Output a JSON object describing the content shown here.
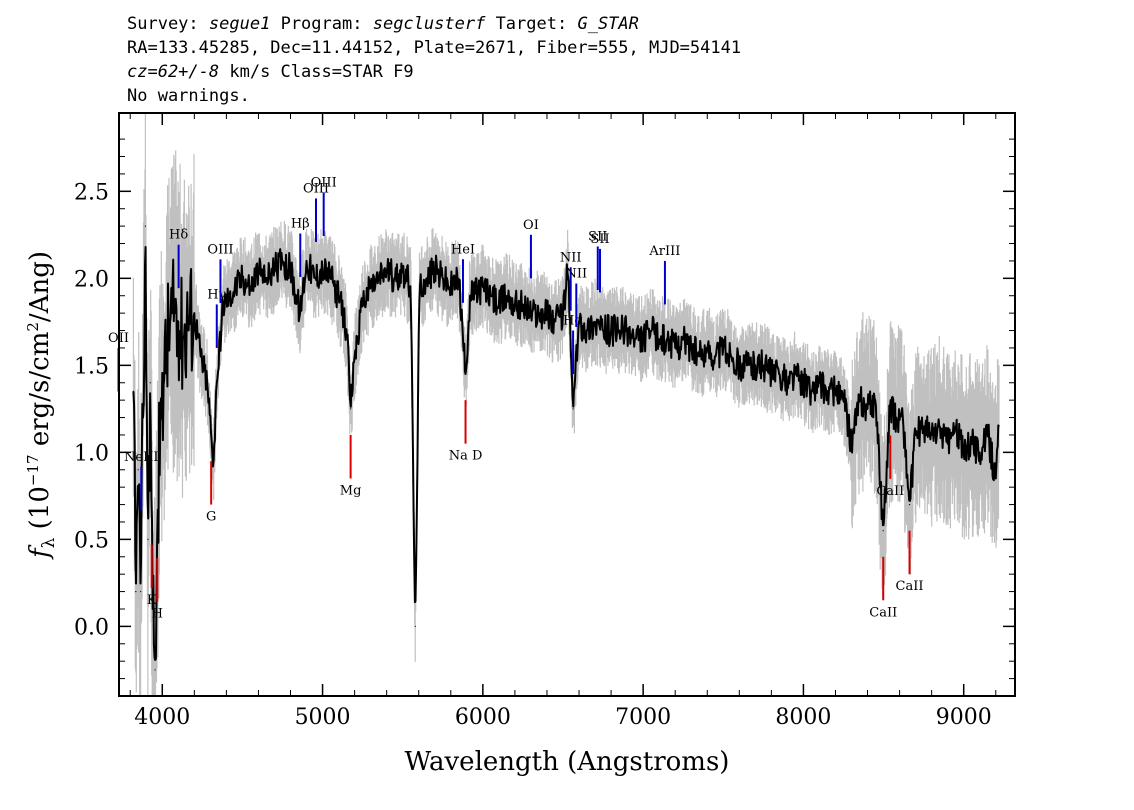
{
  "header": {
    "survey_label": "Survey:",
    "survey": "segue1",
    "program_label": "Program:",
    "program": "segclusterf",
    "target_label": "Target:",
    "target": "G_STAR",
    "line2": "RA=133.45285, Dec=11.44152, Plate=2671, Fiber=555, MJD=54141",
    "cz": "cz=62+/-8",
    "cz_rest": "km/s Class=STAR F9",
    "line4": "No warnings."
  },
  "chart_data": {
    "type": "line",
    "xlabel": "Wavelength (Angstroms)",
    "ylabel": "f_λ (10^-17 erg/s/cm^2/Ang)",
    "ylabel_parts": {
      "f": "f",
      "sub": "λ",
      "a": " (10",
      "sup1": "−17",
      "b": " erg/s/cm",
      "sup2": "2",
      "c": "/Ang)"
    },
    "xlim": [
      3730,
      9320
    ],
    "ylim": [
      -0.4,
      2.95
    ],
    "xticks": [
      4000,
      5000,
      6000,
      7000,
      8000,
      9000
    ],
    "xtick_labels": [
      "4000",
      "5000",
      "6000",
      "7000",
      "8000",
      "9000"
    ],
    "yticks": [
      0.0,
      0.5,
      1.0,
      1.5,
      2.0,
      2.5
    ],
    "ytick_labels": [
      "0.0",
      "0.5",
      "1.0",
      "1.5",
      "2.0",
      "2.5"
    ],
    "colors": {
      "flux": "#000000",
      "error_band": "#c0c0c0",
      "emission": "#0000cc",
      "absorption": "#dd0000"
    },
    "series": [
      {
        "name": "flux",
        "points": [
          [
            3820,
            1.35
          ],
          [
            3835,
            0.2
          ],
          [
            3850,
            0.9
          ],
          [
            3865,
            0.2
          ],
          [
            3880,
            1.2
          ],
          [
            3895,
            2.3
          ],
          [
            3910,
            0.5
          ],
          [
            3925,
            1.4
          ],
          [
            3940,
            0.1
          ],
          [
            3955,
            -0.25
          ],
          [
            3970,
            0.6
          ],
          [
            3990,
            1.3
          ],
          [
            4010,
            1.4
          ],
          [
            4040,
            1.7
          ],
          [
            4080,
            1.8
          ],
          [
            4100,
            1.75
          ],
          [
            4130,
            1.65
          ],
          [
            4160,
            1.75
          ],
          [
            4200,
            1.8
          ],
          [
            4240,
            1.55
          ],
          [
            4280,
            1.4
          ],
          [
            4305,
            1.1
          ],
          [
            4320,
            0.95
          ],
          [
            4340,
            1.4
          ],
          [
            4380,
            1.85
          ],
          [
            4420,
            1.9
          ],
          [
            4460,
            1.95
          ],
          [
            4500,
            2.0
          ],
          [
            4550,
            1.95
          ],
          [
            4600,
            2.05
          ],
          [
            4650,
            2.0
          ],
          [
            4700,
            2.05
          ],
          [
            4750,
            2.1
          ],
          [
            4800,
            2.05
          ],
          [
            4860,
            1.8
          ],
          [
            4900,
            2.1
          ],
          [
            4950,
            2.0
          ],
          [
            5000,
            2.05
          ],
          [
            5050,
            2.0
          ],
          [
            5100,
            1.9
          ],
          [
            5150,
            1.7
          ],
          [
            5175,
            1.25
          ],
          [
            5200,
            1.55
          ],
          [
            5250,
            1.85
          ],
          [
            5300,
            1.95
          ],
          [
            5350,
            2.0
          ],
          [
            5400,
            2.05
          ],
          [
            5450,
            2.0
          ],
          [
            5500,
            2.05
          ],
          [
            5550,
            1.95
          ],
          [
            5578,
            0.0
          ],
          [
            5605,
            1.95
          ],
          [
            5650,
            2.0
          ],
          [
            5700,
            2.05
          ],
          [
            5750,
            2.0
          ],
          [
            5800,
            1.95
          ],
          [
            5850,
            2.0
          ],
          [
            5892,
            1.45
          ],
          [
            5920,
            1.9
          ],
          [
            6000,
            1.95
          ],
          [
            6050,
            1.9
          ],
          [
            6100,
            1.85
          ],
          [
            6150,
            1.9
          ],
          [
            6200,
            1.85
          ],
          [
            6250,
            1.85
          ],
          [
            6300,
            1.8
          ],
          [
            6350,
            1.8
          ],
          [
            6400,
            1.8
          ],
          [
            6450,
            1.75
          ],
          [
            6500,
            1.8
          ],
          [
            6530,
            2.05
          ],
          [
            6563,
            1.25
          ],
          [
            6600,
            1.75
          ],
          [
            6650,
            1.7
          ],
          [
            6700,
            1.75
          ],
          [
            6750,
            1.7
          ],
          [
            6800,
            1.7
          ],
          [
            6850,
            1.7
          ],
          [
            6900,
            1.7
          ],
          [
            6950,
            1.65
          ],
          [
            7000,
            1.65
          ],
          [
            7050,
            1.7
          ],
          [
            7100,
            1.65
          ],
          [
            7150,
            1.65
          ],
          [
            7200,
            1.6
          ],
          [
            7250,
            1.65
          ],
          [
            7300,
            1.6
          ],
          [
            7350,
            1.55
          ],
          [
            7400,
            1.6
          ],
          [
            7450,
            1.55
          ],
          [
            7500,
            1.6
          ],
          [
            7550,
            1.55
          ],
          [
            7600,
            1.5
          ],
          [
            7650,
            1.5
          ],
          [
            7700,
            1.5
          ],
          [
            7750,
            1.5
          ],
          [
            7800,
            1.45
          ],
          [
            7850,
            1.45
          ],
          [
            7900,
            1.4
          ],
          [
            7950,
            1.45
          ],
          [
            8000,
            1.4
          ],
          [
            8050,
            1.35
          ],
          [
            8100,
            1.4
          ],
          [
            8150,
            1.35
          ],
          [
            8200,
            1.35
          ],
          [
            8250,
            1.3
          ],
          [
            8300,
            1.05
          ],
          [
            8350,
            1.3
          ],
          [
            8400,
            1.25
          ],
          [
            8450,
            1.3
          ],
          [
            8498,
            0.55
          ],
          [
            8540,
            1.25
          ],
          [
            8580,
            1.2
          ],
          [
            8620,
            1.2
          ],
          [
            8662,
            0.7
          ],
          [
            8700,
            1.1
          ],
          [
            8750,
            1.15
          ],
          [
            8800,
            1.1
          ],
          [
            8850,
            1.15
          ],
          [
            8900,
            1.05
          ],
          [
            8950,
            1.15
          ],
          [
            9000,
            1.0
          ],
          [
            9050,
            1.05
          ],
          [
            9100,
            1.0
          ],
          [
            9150,
            1.1
          ],
          [
            9200,
            0.85
          ],
          [
            9220,
            1.15
          ]
        ]
      }
    ],
    "lines": [
      {
        "label": "OII",
        "x": 3727,
        "kind": "emission"
      },
      {
        "label": "NeIII",
        "x": 3869,
        "kind": "emission"
      },
      {
        "label": "K",
        "x": 3934,
        "kind": "absorption"
      },
      {
        "label": "H",
        "x": 3969,
        "kind": "absorption"
      },
      {
        "label": "Hδ",
        "x": 4102,
        "kind": "emission"
      },
      {
        "label": "Hγ",
        "x": 4340,
        "kind": "emission"
      },
      {
        "label": "G",
        "x": 4305,
        "kind": "absorption"
      },
      {
        "label": "OIII",
        "x": 4363,
        "kind": "emission"
      },
      {
        "label": "Hβ",
        "x": 4861,
        "kind": "emission"
      },
      {
        "label": "OIII",
        "x": 4959,
        "kind": "emission"
      },
      {
        "label": "OIII",
        "x": 5007,
        "kind": "emission"
      },
      {
        "label": "Mg",
        "x": 5175,
        "kind": "absorption"
      },
      {
        "label": "HeI",
        "x": 5876,
        "kind": "emission"
      },
      {
        "label": "Na D",
        "x": 5892,
        "kind": "absorption"
      },
      {
        "label": "OI",
        "x": 6300,
        "kind": "emission"
      },
      {
        "label": "NII",
        "x": 6548,
        "kind": "emission"
      },
      {
        "label": "Hα",
        "x": 6563,
        "kind": "emission"
      },
      {
        "label": "NII",
        "x": 6583,
        "kind": "emission"
      },
      {
        "label": "SII",
        "x": 6717,
        "kind": "emission"
      },
      {
        "label": "SII",
        "x": 6731,
        "kind": "emission"
      },
      {
        "label": "ArIII",
        "x": 7136,
        "kind": "emission"
      },
      {
        "label": "CaII",
        "x": 8498,
        "kind": "absorption"
      },
      {
        "label": "CaII",
        "x": 8542,
        "kind": "absorption"
      },
      {
        "label": "CaII",
        "x": 8662,
        "kind": "absorption"
      }
    ]
  }
}
